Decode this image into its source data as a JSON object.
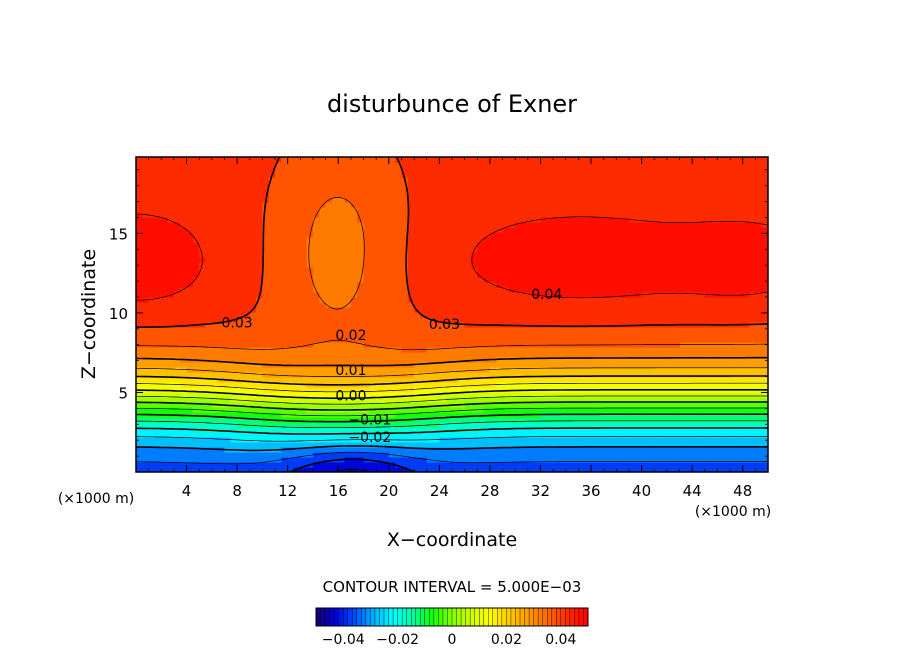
{
  "chart_data": {
    "type": "contour",
    "title": "disturbunce of Exner",
    "xlabel": "X−coordinate",
    "ylabel": "Z−coordinate",
    "x_unit": "(×1000 m)",
    "y_unit": "(×1000 m)",
    "xlim": [
      0,
      50
    ],
    "ylim": [
      0,
      19.8
    ],
    "x_ticks": [
      4,
      8,
      12,
      16,
      20,
      24,
      28,
      32,
      36,
      40,
      44,
      48
    ],
    "y_ticks": [
      5,
      10,
      15
    ],
    "contour_interval_text": "CONTOUR INTERVAL = 5.000E−03",
    "contour_interval": 0.005,
    "value_range": [
      -0.05,
      0.05
    ],
    "labeled_contours": [
      {
        "text": "0.04",
        "value": 0.04,
        "x": 32.5,
        "y": 11.2
      },
      {
        "text": "0.03",
        "value": 0.03,
        "x": 8.0,
        "y": 9.4
      },
      {
        "text": "0.03",
        "value": 0.03,
        "x": 24.4,
        "y": 9.3
      },
      {
        "text": "0.02",
        "value": 0.02,
        "x": 17.0,
        "y": 8.6
      },
      {
        "text": "0.01",
        "value": 0.01,
        "x": 17.0,
        "y": 6.4
      },
      {
        "text": "0.00",
        "value": 0.0,
        "x": 17.0,
        "y": 4.8
      },
      {
        "text": "−0.01",
        "value": -0.01,
        "x": 18.5,
        "y": 3.3
      },
      {
        "text": "−0.02",
        "value": -0.02,
        "x": 18.5,
        "y": 2.2
      }
    ],
    "colorbar": {
      "range": [
        -0.05,
        0.05
      ],
      "tick_labels": [
        "−0.04",
        "−0.02",
        "0",
        "0.02",
        "0.04"
      ],
      "tick_values": [
        -0.04,
        -0.02,
        0,
        0.02,
        0.04
      ],
      "palette": [
        "#14006e",
        "#0000dc",
        "#0050ff",
        "#00b4ff",
        "#00ffff",
        "#00ffa0",
        "#14ff00",
        "#82ff00",
        "#d2ff00",
        "#ffff00",
        "#ffc800",
        "#ff9600",
        "#ff6400",
        "#ff2800",
        "#ff0000"
      ]
    }
  }
}
